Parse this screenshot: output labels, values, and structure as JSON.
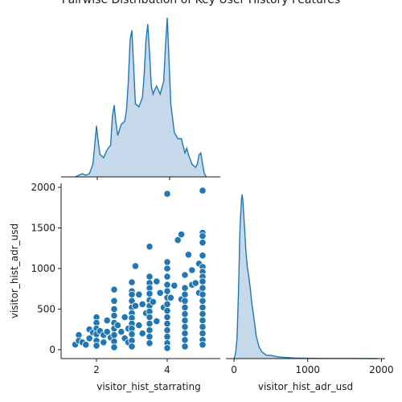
{
  "chart_data": {
    "type": "pairplot",
    "title": "Pairwise Distribution of Key User History Features",
    "variables": [
      "visitor_hist_starrating",
      "visitor_hist_adr_usd"
    ],
    "colors": {
      "marker": "#1f77b4",
      "kde_fill": "#9ebfde",
      "marker_edge": "#ffffff"
    },
    "panels": {
      "starrating_kde": {
        "type": "area",
        "variable": "visitor_hist_starrating",
        "xlim": [
          1.0,
          5.5
        ],
        "x": [
          1.4,
          1.5,
          1.6,
          1.7,
          1.8,
          1.9,
          1.95,
          2.0,
          2.05,
          2.1,
          2.2,
          2.3,
          2.4,
          2.45,
          2.5,
          2.55,
          2.6,
          2.7,
          2.8,
          2.85,
          2.9,
          2.95,
          3.0,
          3.05,
          3.1,
          3.2,
          3.3,
          3.35,
          3.4,
          3.45,
          3.5,
          3.55,
          3.6,
          3.65,
          3.7,
          3.8,
          3.9,
          3.95,
          4.0,
          4.05,
          4.1,
          4.2,
          4.3,
          4.4,
          4.5,
          4.55,
          4.6,
          4.7,
          4.8,
          4.85,
          4.9,
          4.95,
          5.0,
          5.05,
          5.1
        ],
        "density": [
          0.0,
          0.01,
          0.02,
          0.01,
          0.02,
          0.08,
          0.2,
          0.32,
          0.22,
          0.14,
          0.12,
          0.17,
          0.2,
          0.38,
          0.45,
          0.34,
          0.26,
          0.33,
          0.35,
          0.42,
          0.6,
          0.86,
          0.92,
          0.7,
          0.46,
          0.44,
          0.5,
          0.65,
          0.86,
          0.96,
          0.78,
          0.57,
          0.52,
          0.55,
          0.57,
          0.52,
          0.6,
          0.82,
          1.0,
          0.74,
          0.46,
          0.28,
          0.24,
          0.24,
          0.15,
          0.18,
          0.14,
          0.08,
          0.06,
          0.08,
          0.14,
          0.15,
          0.08,
          0.02,
          0.0
        ]
      },
      "scatter": {
        "type": "scatter",
        "x_variable": "visitor_hist_starrating",
        "y_variable": "visitor_hist_adr_usd",
        "xlim": [
          1.0,
          5.5
        ],
        "ylim": [
          -110,
          2050
        ],
        "points": [
          [
            1.4,
            62
          ],
          [
            1.5,
            180
          ],
          [
            1.5,
            110
          ],
          [
            1.6,
            90
          ],
          [
            1.7,
            60
          ],
          [
            1.8,
            250
          ],
          [
            1.8,
            140
          ],
          [
            1.9,
            210
          ],
          [
            2.0,
            400
          ],
          [
            2.0,
            330
          ],
          [
            2.0,
            260
          ],
          [
            2.0,
            190
          ],
          [
            2.0,
            110
          ],
          [
            2.0,
            50
          ],
          [
            2.1,
            230
          ],
          [
            2.2,
            180
          ],
          [
            2.2,
            90
          ],
          [
            2.3,
            360
          ],
          [
            2.3,
            220
          ],
          [
            2.4,
            150
          ],
          [
            2.5,
            740
          ],
          [
            2.5,
            600
          ],
          [
            2.5,
            500
          ],
          [
            2.5,
            420
          ],
          [
            2.5,
            330
          ],
          [
            2.5,
            260
          ],
          [
            2.5,
            180
          ],
          [
            2.5,
            100
          ],
          [
            2.5,
            30
          ],
          [
            2.6,
            300
          ],
          [
            2.7,
            220
          ],
          [
            2.8,
            400
          ],
          [
            2.8,
            140
          ],
          [
            2.9,
            260
          ],
          [
            2.9,
            90
          ],
          [
            3.0,
            830
          ],
          [
            3.0,
            720
          ],
          [
            3.0,
            680
          ],
          [
            3.0,
            600
          ],
          [
            3.0,
            520
          ],
          [
            3.0,
            450
          ],
          [
            3.0,
            390
          ],
          [
            3.0,
            320
          ],
          [
            3.0,
            260
          ],
          [
            3.0,
            190
          ],
          [
            3.0,
            110
          ],
          [
            3.0,
            40
          ],
          [
            3.1,
            1030
          ],
          [
            3.1,
            540
          ],
          [
            3.2,
            680
          ],
          [
            3.2,
            300
          ],
          [
            3.3,
            560
          ],
          [
            3.3,
            200
          ],
          [
            3.4,
            450
          ],
          [
            3.5,
            1270
          ],
          [
            3.5,
            900
          ],
          [
            3.5,
            820
          ],
          [
            3.5,
            760
          ],
          [
            3.5,
            690
          ],
          [
            3.5,
            610
          ],
          [
            3.5,
            540
          ],
          [
            3.5,
            470
          ],
          [
            3.5,
            400
          ],
          [
            3.5,
            320
          ],
          [
            3.5,
            240
          ],
          [
            3.5,
            160
          ],
          [
            3.5,
            80
          ],
          [
            3.6,
            590
          ],
          [
            3.7,
            840
          ],
          [
            3.7,
            350
          ],
          [
            3.8,
            700
          ],
          [
            3.9,
            520
          ],
          [
            4.0,
            1920
          ],
          [
            4.0,
            1080
          ],
          [
            4.0,
            1000
          ],
          [
            4.0,
            900
          ],
          [
            4.0,
            800
          ],
          [
            4.0,
            720
          ],
          [
            4.0,
            640
          ],
          [
            4.0,
            560
          ],
          [
            4.0,
            480
          ],
          [
            4.0,
            400
          ],
          [
            4.0,
            320
          ],
          [
            4.0,
            240
          ],
          [
            4.0,
            160
          ],
          [
            4.0,
            80
          ],
          [
            4.0,
            20
          ],
          [
            4.1,
            640
          ],
          [
            4.2,
            790
          ],
          [
            4.3,
            1350
          ],
          [
            4.4,
            1420
          ],
          [
            4.4,
            620
          ],
          [
            4.5,
            920
          ],
          [
            4.5,
            760
          ],
          [
            4.5,
            680
          ],
          [
            4.5,
            600
          ],
          [
            4.5,
            520
          ],
          [
            4.5,
            440
          ],
          [
            4.5,
            360
          ],
          [
            4.5,
            280
          ],
          [
            4.5,
            200
          ],
          [
            4.5,
            120
          ],
          [
            4.5,
            40
          ],
          [
            4.6,
            1170
          ],
          [
            4.7,
            980
          ],
          [
            4.7,
            800
          ],
          [
            4.8,
            820
          ],
          [
            4.9,
            1060
          ],
          [
            4.9,
            700
          ],
          [
            5.0,
            1960
          ],
          [
            5.0,
            1440
          ],
          [
            5.0,
            1400
          ],
          [
            5.0,
            1320
          ],
          [
            5.0,
            1160
          ],
          [
            5.0,
            1020
          ],
          [
            5.0,
            960
          ],
          [
            5.0,
            900
          ],
          [
            5.0,
            840
          ],
          [
            5.0,
            760
          ],
          [
            5.0,
            680
          ],
          [
            5.0,
            600
          ],
          [
            5.0,
            520
          ],
          [
            5.0,
            440
          ],
          [
            5.0,
            360
          ],
          [
            5.0,
            280
          ],
          [
            5.0,
            200
          ],
          [
            5.0,
            120
          ],
          [
            5.0,
            60
          ]
        ]
      },
      "adr_kde": {
        "type": "area",
        "variable": "visitor_hist_adr_usd",
        "xlim": [
          -110,
          2050
        ],
        "x": [
          0,
          20,
          40,
          60,
          80,
          100,
          110,
          120,
          140,
          160,
          180,
          200,
          220,
          240,
          260,
          280,
          300,
          340,
          380,
          440,
          500,
          600,
          800,
          1000,
          1200,
          1500,
          1950
        ],
        "density": [
          0.0,
          0.03,
          0.12,
          0.4,
          0.78,
          0.97,
          1.0,
          0.96,
          0.82,
          0.66,
          0.56,
          0.5,
          0.43,
          0.34,
          0.28,
          0.21,
          0.14,
          0.07,
          0.04,
          0.02,
          0.02,
          0.01,
          0.004,
          0.002,
          0.001,
          0.001,
          0.0
        ]
      }
    },
    "axes": {
      "starrating_ticks": [
        "2",
        "4"
      ],
      "starrating_tick_values": [
        2,
        4
      ],
      "adr_y_ticks": [
        "0",
        "500",
        "1000",
        "1500",
        "2000"
      ],
      "adr_y_tick_values": [
        0,
        500,
        1000,
        1500,
        2000
      ],
      "adr_x_ticks": [
        "0",
        "1000",
        "2000"
      ],
      "adr_x_tick_values": [
        0,
        1000,
        2000
      ],
      "xlabel_left": "visitor_hist_starrating",
      "xlabel_right": "visitor_hist_adr_usd",
      "ylabel": "visitor_hist_adr_usd"
    }
  }
}
